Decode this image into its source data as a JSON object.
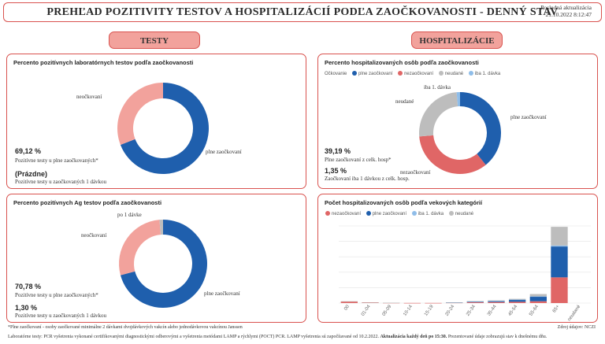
{
  "header": {
    "title": "PREHĽAD POZITIVITY TESTOV A HOSPITALIZÁCIÍ PODĽA ZAOČKOVANOSTI - DENNÝ STAV",
    "last_update_label": "Posledná aktualizácia",
    "last_update_value": "21.10.2022 8:12:47"
  },
  "sections": {
    "tests": "TESTY",
    "hospital": "HOSPITALIZÁCIE"
  },
  "colors": {
    "full": "#1f5fad",
    "unvacc": "#e06666",
    "unknown": "#bdbdbd",
    "one_dose": "#8fbde9",
    "unvacc_light": "#f2a29c",
    "accent": "#d9534f"
  },
  "pcr": {
    "title": "Percento pozitívnych laboratórnych testov podľa zaočkovanosti",
    "label_unvacc": "neočkovaní",
    "label_full": "plne zaočkovaní",
    "stat1_value": "69,12 %",
    "stat1_desc": "Pozitívne testy u plne zaočkovaných*",
    "stat2_value": "(Prázdne)",
    "stat2_desc": "Pozitívne testy u zaočkovaných 1 dávkou"
  },
  "ag": {
    "title": "Percento pozitívnych Ag testov podľa zaočkovanosti",
    "label_one_dose": "po 1 dávke",
    "label_unvacc": "neočkovaní",
    "label_full": "plne zaočkovaní",
    "stat1_value": "70,78 %",
    "stat1_desc": "Pozitívne testy u plne zaočkovaných*",
    "stat2_value": "1,30 %",
    "stat2_desc": "Pozitívne testy u zaočkovaných 1 dávkou"
  },
  "hosp": {
    "title": "Percento hospitalizovaných osôb podľa zaočkovanosti",
    "legend_title": "Očkovanie",
    "legend": [
      "plne zaočkovaní",
      "nezaočkovaní",
      "neudané",
      "iba 1. dávka"
    ],
    "label_one_dose": "iba 1. dávka",
    "label_unknown": "neudané",
    "label_full": "plne zaočkovaní",
    "label_unvacc": "nezaočkovaní",
    "stat1_value": "39,19 %",
    "stat1_desc": "Plne zaočkovaní z celk. hosp*",
    "stat2_value": "1,35 %",
    "stat2_desc": "Zaočkovaní iba 1 dávkou z celk. hosp."
  },
  "age": {
    "title": "Počet hospitalizovaných osôb podľa vekových kategórií",
    "legend": [
      "nezaočkovaní",
      "plne zaočkovaní",
      "iba 1. dávka",
      "neudané"
    ]
  },
  "footer": {
    "note": "*Plne zaočkovaní - osoby zaočkované minimálne 2 dávkami dvojdávkových vakcín alebo jednodávkovou vakcínou Janssen",
    "source": "Zdroj údajov: NCZI",
    "method": "Laboratórne testy: PCR vyšetrenia vykonané certifikovanými diagnostickými odberovými a vyšetrenia metódami LAMP a rýchlymi (POCT) PCR. LAMP vyšetrenia sú započítavané od 10.2.2022.",
    "update_bold": "Aktualizácia každý deň po 15:30.",
    "update_rest": "Prezentované údaje zobrazujú stav k dnešnému dňu."
  },
  "chart_data": [
    {
      "type": "pie",
      "title": "Percento pozitívnych laboratórnych testov podľa zaočkovanosti",
      "categories": [
        "plne zaočkovaní",
        "neočkovaní"
      ],
      "values": [
        69.12,
        30.88
      ]
    },
    {
      "type": "pie",
      "title": "Percento pozitívnych Ag testov podľa zaočkovanosti",
      "categories": [
        "plne zaočkovaní",
        "neočkovaní",
        "po 1 dávke"
      ],
      "values": [
        70.78,
        27.92,
        1.3
      ]
    },
    {
      "type": "pie",
      "title": "Percento hospitalizovaných osôb podľa zaočkovanosti",
      "categories": [
        "plne zaočkovaní",
        "nezaočkovaní",
        "neudané",
        "iba 1. dávka"
      ],
      "values": [
        39.19,
        34.46,
        25.0,
        1.35
      ]
    },
    {
      "type": "bar",
      "title": "Počet hospitalizovaných osôb podľa vekových kategórií",
      "categories": [
        "00",
        "01-04",
        "05-09",
        "10-14",
        "15-19",
        "20-24",
        "25-34",
        "35-44",
        "45-54",
        "55-64",
        "65+",
        "neudané"
      ],
      "series": [
        {
          "name": "nezaočkovaní",
          "values": [
            12,
            5,
            2,
            1,
            1,
            3,
            6,
            8,
            10,
            14,
            200,
            0
          ]
        },
        {
          "name": "plne zaočkovaní",
          "values": [
            0,
            0,
            0,
            0,
            0,
            1,
            5,
            8,
            15,
            35,
            240,
            0
          ]
        },
        {
          "name": "iba 1. dávka",
          "values": [
            0,
            0,
            0,
            0,
            0,
            0,
            1,
            1,
            2,
            3,
            8,
            0
          ]
        },
        {
          "name": "neudané",
          "values": [
            2,
            1,
            1,
            0,
            0,
            1,
            3,
            4,
            6,
            18,
            145,
            0
          ]
        }
      ],
      "ylim": [
        0,
        600
      ],
      "grid": true
    }
  ]
}
